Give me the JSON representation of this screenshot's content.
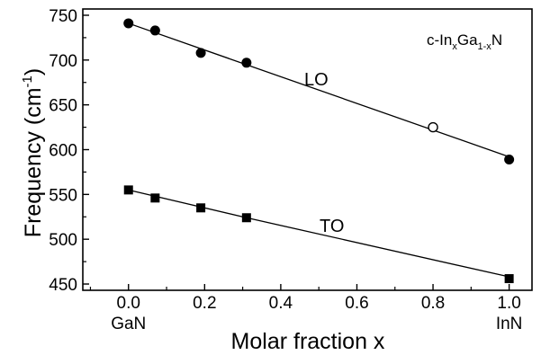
{
  "chart_data": {
    "type": "scatter",
    "xlabel": "Molar fraction  x",
    "ylabel": "Frequency (cm",
    "ylabel_sup": "-1",
    "ylabel_close": ")",
    "xlim": [
      -0.12,
      1.06
    ],
    "ylim": [
      443,
      757
    ],
    "x_ticks": [
      0.0,
      0.2,
      0.4,
      0.6,
      0.8,
      1.0
    ],
    "x_tick_labels": [
      "0.0",
      "0.2",
      "0.4",
      "0.6",
      "0.8",
      "1.0"
    ],
    "y_ticks": [
      450,
      500,
      550,
      600,
      650,
      700,
      750
    ],
    "y_tick_labels": [
      "450",
      "500",
      "550",
      "600",
      "650",
      "700",
      "750"
    ],
    "x_endpoint_labels": [
      {
        "x": 0.0,
        "text": "GaN"
      },
      {
        "x": 1.0,
        "text": "InN"
      }
    ],
    "annotation": {
      "prefix": "c-In",
      "sub1": "x",
      "middle": "Ga",
      "sub2": "1-x",
      "suffix": "N"
    },
    "series": [
      {
        "name": "LO",
        "marker": "filled-circle",
        "x": [
          0.0,
          0.07,
          0.19,
          0.31,
          1.0
        ],
        "y": [
          741,
          733,
          708,
          697,
          589
        ],
        "fit": {
          "x": [
            0.0,
            1.0
          ],
          "y": [
            741,
            592
          ]
        },
        "extra_points": [
          {
            "x": 0.8,
            "y": 625,
            "marker": "open-circle"
          }
        ]
      },
      {
        "name": "TO",
        "marker": "filled-square",
        "x": [
          0.0,
          0.07,
          0.19,
          0.31,
          1.0
        ],
        "y": [
          555,
          546,
          535,
          524,
          456
        ],
        "fit": {
          "x": [
            0.0,
            0.31,
            1.0
          ],
          "y": [
            555,
            524,
            458
          ]
        }
      }
    ],
    "grid": false,
    "legend": "none"
  }
}
